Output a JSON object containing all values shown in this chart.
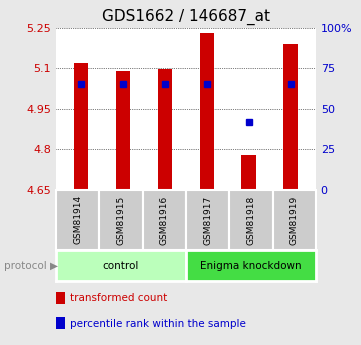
{
  "title": "GDS1662 / 146687_at",
  "samples": [
    "GSM81914",
    "GSM81915",
    "GSM81916",
    "GSM81917",
    "GSM81918",
    "GSM81919"
  ],
  "bar_values": [
    5.12,
    5.09,
    5.095,
    5.23,
    4.78,
    5.19
  ],
  "percentile_ranks": [
    65,
    65,
    65,
    65,
    42,
    65
  ],
  "ylim_left": [
    4.65,
    5.25
  ],
  "ylim_right": [
    0,
    100
  ],
  "yticks_left": [
    4.65,
    4.8,
    4.95,
    5.1,
    5.25
  ],
  "ytick_labels_left": [
    "4.65",
    "4.8",
    "4.95",
    "5.1",
    "5.25"
  ],
  "yticks_right": [
    0,
    25,
    50,
    75,
    100
  ],
  "ytick_labels_right": [
    "0",
    "25",
    "50",
    "75",
    "100%"
  ],
  "bar_color": "#cc0000",
  "dot_color": "#0000cc",
  "bar_width": 0.35,
  "groups": [
    {
      "label": "control",
      "indices": [
        0,
        1,
        2
      ],
      "color": "#bbffbb"
    },
    {
      "label": "Enigma knockdown",
      "indices": [
        3,
        4,
        5
      ],
      "color": "#44dd44"
    }
  ],
  "protocol_label": "protocol",
  "legend_items": [
    {
      "color": "#cc0000",
      "label": "transformed count"
    },
    {
      "color": "#0000cc",
      "label": "percentile rank within the sample"
    }
  ],
  "background_color": "#e8e8e8",
  "plot_bg": "#ffffff",
  "label_box_color": "#cccccc",
  "title_fontsize": 11,
  "tick_fontsize": 8,
  "legend_fontsize": 7.5
}
